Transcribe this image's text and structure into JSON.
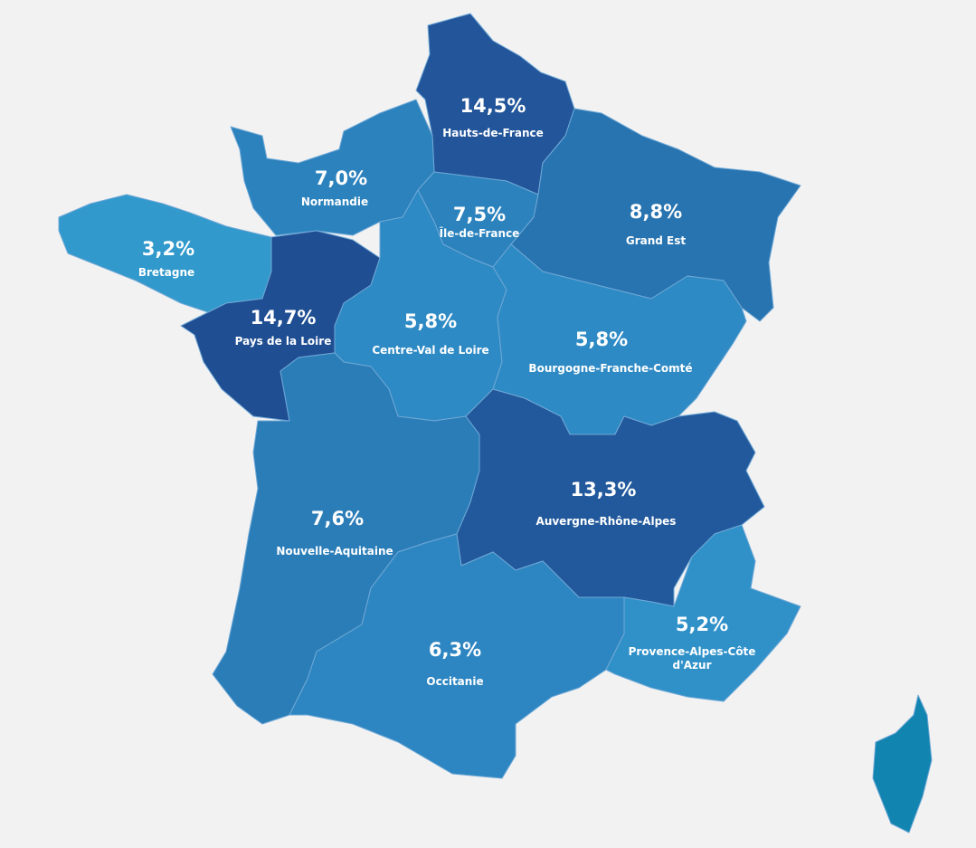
{
  "regions": [
    {
      "name": "Hauts-de-France",
      "value": "14,5%"
    },
    {
      "name": "Normandie",
      "value": "7,0%"
    },
    {
      "name": "Île-de-France",
      "value": "7,5%"
    },
    {
      "name": "Grand Est",
      "value": "8,8%"
    },
    {
      "name": "Bretagne",
      "value": "3,2%"
    },
    {
      "name": "Pays de la Loire",
      "value": "14,7%"
    },
    {
      "name": "Centre-Val de Loire",
      "value": "5,8%"
    },
    {
      "name": "Bourgogne-Franche-Comté",
      "value": "5,8%"
    },
    {
      "name": "Nouvelle-Aquitaine",
      "value": "7,6%"
    },
    {
      "name": "Auvergne-Rhône-Alpes",
      "value": "13,3%"
    },
    {
      "name": "Occitanie",
      "value": "6,3%"
    },
    {
      "name": "Provence-Alpes-Côte d'Azur",
      "value": "5,2%"
    }
  ]
}
